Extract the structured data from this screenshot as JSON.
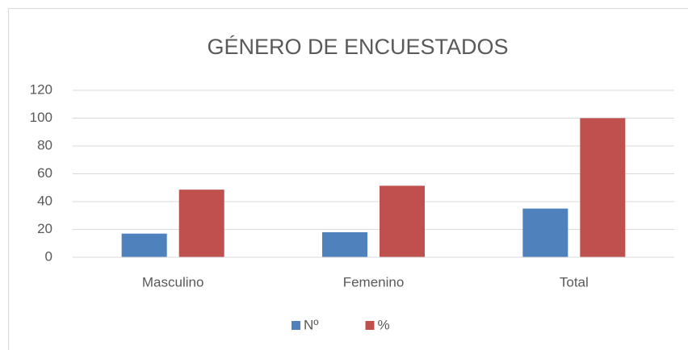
{
  "chart_data": {
    "type": "bar",
    "title": "GÉNERO DE ENCUESTADOS",
    "categories": [
      "Masculino",
      "Femenino",
      "Total"
    ],
    "series": [
      {
        "name": "Nº",
        "color": "#4f81bd",
        "values": [
          17,
          18,
          35
        ]
      },
      {
        "name": "%",
        "color": "#c0504d",
        "values": [
          48.6,
          51.4,
          100
        ]
      }
    ],
    "ylim": [
      0,
      120
    ],
    "yticks": [
      0,
      20,
      40,
      60,
      80,
      100,
      120
    ],
    "grid": true,
    "legend": "bottom"
  }
}
